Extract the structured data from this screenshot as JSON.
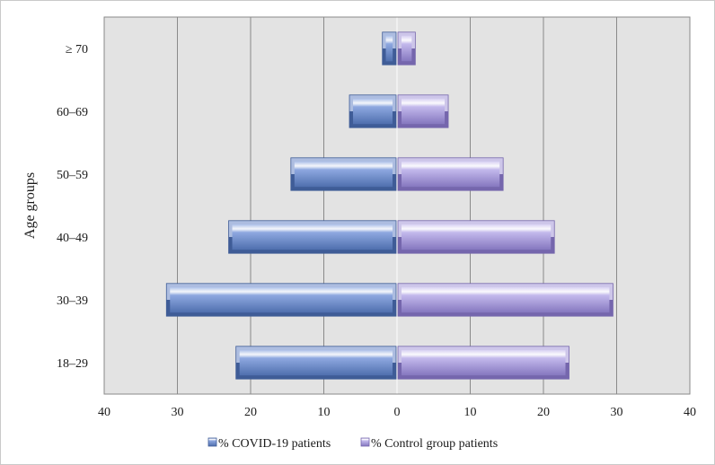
{
  "chart_data": {
    "type": "bar",
    "orientation": "horizontal",
    "layout": "population-pyramid",
    "categories": [
      "18–29",
      "30–39",
      "40–49",
      "50–59",
      "60–69",
      "≥ 70"
    ],
    "series": [
      {
        "name": "% COVID-19 patients",
        "values": [
          22,
          31.5,
          23,
          14.5,
          6.5,
          2
        ],
        "color": "#7b98d8"
      },
      {
        "name": "% Control group patients",
        "values": [
          23.5,
          29.5,
          21.5,
          14.5,
          7,
          2.5
        ],
        "color": "#b9aee6"
      }
    ],
    "x_ticks": [
      "40",
      "30",
      "20",
      "10",
      "0",
      "10",
      "20",
      "30",
      "40"
    ],
    "xlim": [
      -40,
      40
    ],
    "xlabel": "",
    "ylabel": "Age groups",
    "title": "",
    "grid": "vertical",
    "plot_background": "#e3e3e3",
    "legend_position": "bottom"
  }
}
